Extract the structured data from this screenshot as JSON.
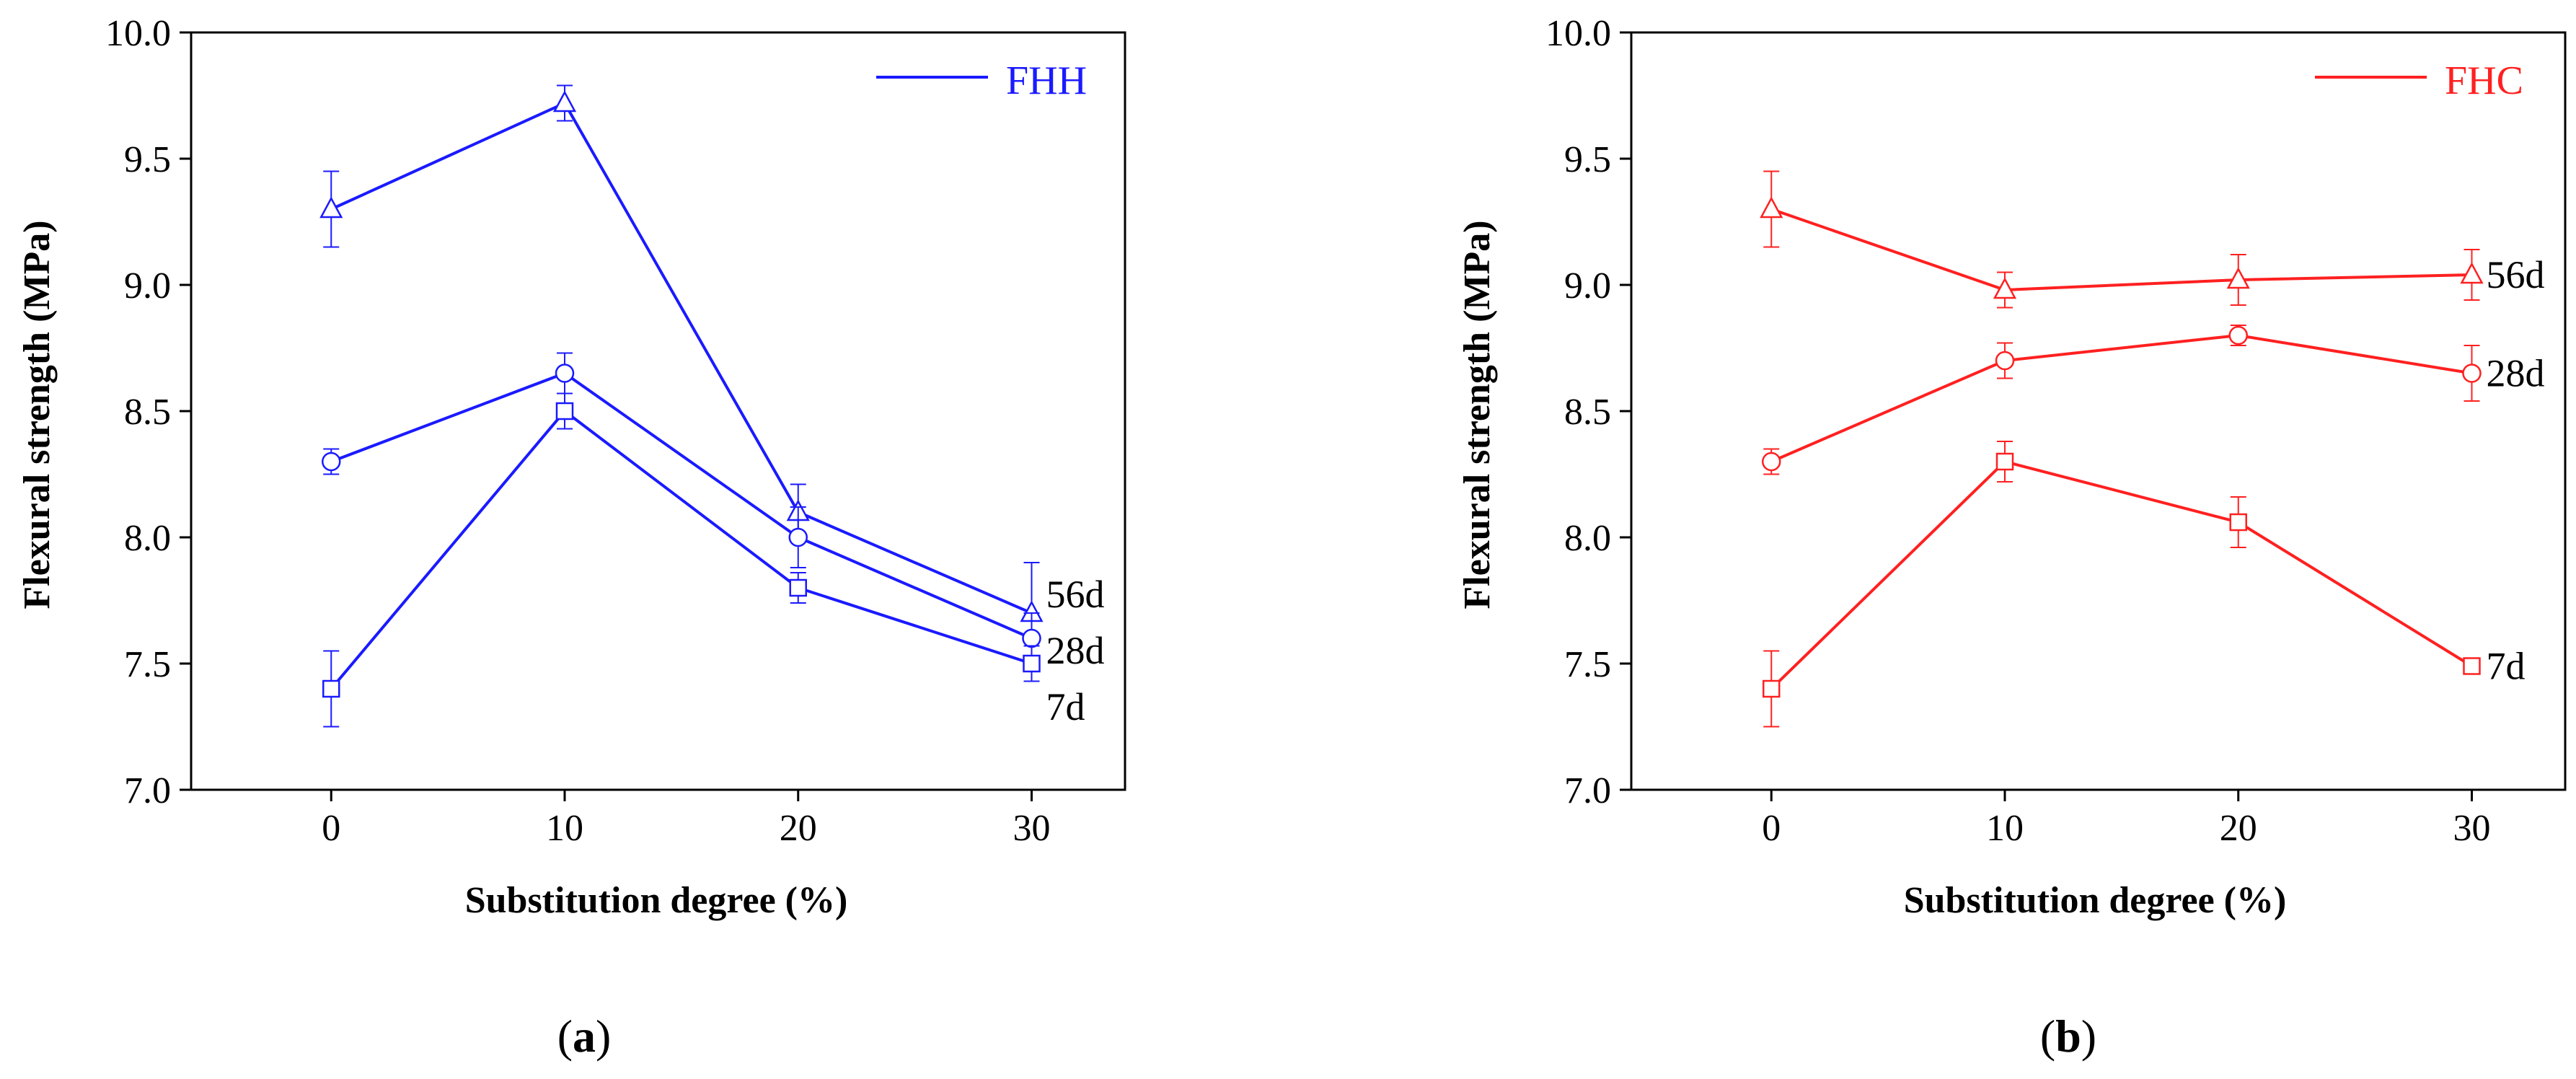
{
  "chart_data": [
    {
      "type": "line",
      "panel_id": "a",
      "caption_open": "(",
      "caption_letter": "a",
      "caption_close": ")",
      "color": "#1a1aff",
      "legend": "FHH",
      "legend_position": "top-right",
      "xlabel": "Substitution degree (%)",
      "ylabel": "Flexural strength (MPa)",
      "xlim": [
        -6,
        34
      ],
      "ylim": [
        7.0,
        10.0
      ],
      "x": [
        0,
        10,
        20,
        30
      ],
      "xticks": [
        "0",
        "10",
        "20",
        "30"
      ],
      "yticks": [
        "7.0",
        "7.5",
        "8.0",
        "8.5",
        "9.0",
        "9.5",
        "10.0"
      ],
      "series": [
        {
          "name": "56d",
          "marker": "triangle",
          "values": [
            9.3,
            9.72,
            8.1,
            7.7
          ],
          "errors": [
            0.15,
            0.07,
            0.11,
            0.2
          ]
        },
        {
          "name": "28d",
          "marker": "circle",
          "values": [
            8.3,
            8.65,
            8.0,
            7.6
          ],
          "errors": [
            0.05,
            0.08,
            0.12,
            0.1
          ]
        },
        {
          "name": "7d",
          "marker": "square",
          "values": [
            7.4,
            8.5,
            7.8,
            7.5
          ],
          "errors": [
            0.15,
            0.07,
            0.06,
            0.07
          ]
        }
      ]
    },
    {
      "type": "line",
      "panel_id": "b",
      "caption_open": "(",
      "caption_letter": "b",
      "caption_close": ")",
      "color": "#ff2020",
      "legend": "FHC",
      "legend_position": "top-right",
      "xlabel": "Substitution degree (%)",
      "ylabel": "Flexural strength (MPa)",
      "xlim": [
        -6,
        34
      ],
      "ylim": [
        7.0,
        10.0
      ],
      "x": [
        0,
        10,
        20,
        30
      ],
      "xticks": [
        "0",
        "10",
        "20",
        "30"
      ],
      "yticks": [
        "7.0",
        "7.5",
        "8.0",
        "8.5",
        "9.0",
        "9.5",
        "10.0"
      ],
      "series": [
        {
          "name": "56d",
          "marker": "triangle",
          "values": [
            9.3,
            8.98,
            9.02,
            9.04
          ],
          "errors": [
            0.15,
            0.07,
            0.1,
            0.1
          ]
        },
        {
          "name": "28d",
          "marker": "circle",
          "values": [
            8.3,
            8.7,
            8.8,
            8.65
          ],
          "errors": [
            0.05,
            0.07,
            0.04,
            0.11
          ]
        },
        {
          "name": "7d",
          "marker": "square",
          "values": [
            7.4,
            8.3,
            8.06,
            7.49
          ],
          "errors": [
            0.15,
            0.08,
            0.1,
            0.03
          ]
        }
      ]
    }
  ]
}
